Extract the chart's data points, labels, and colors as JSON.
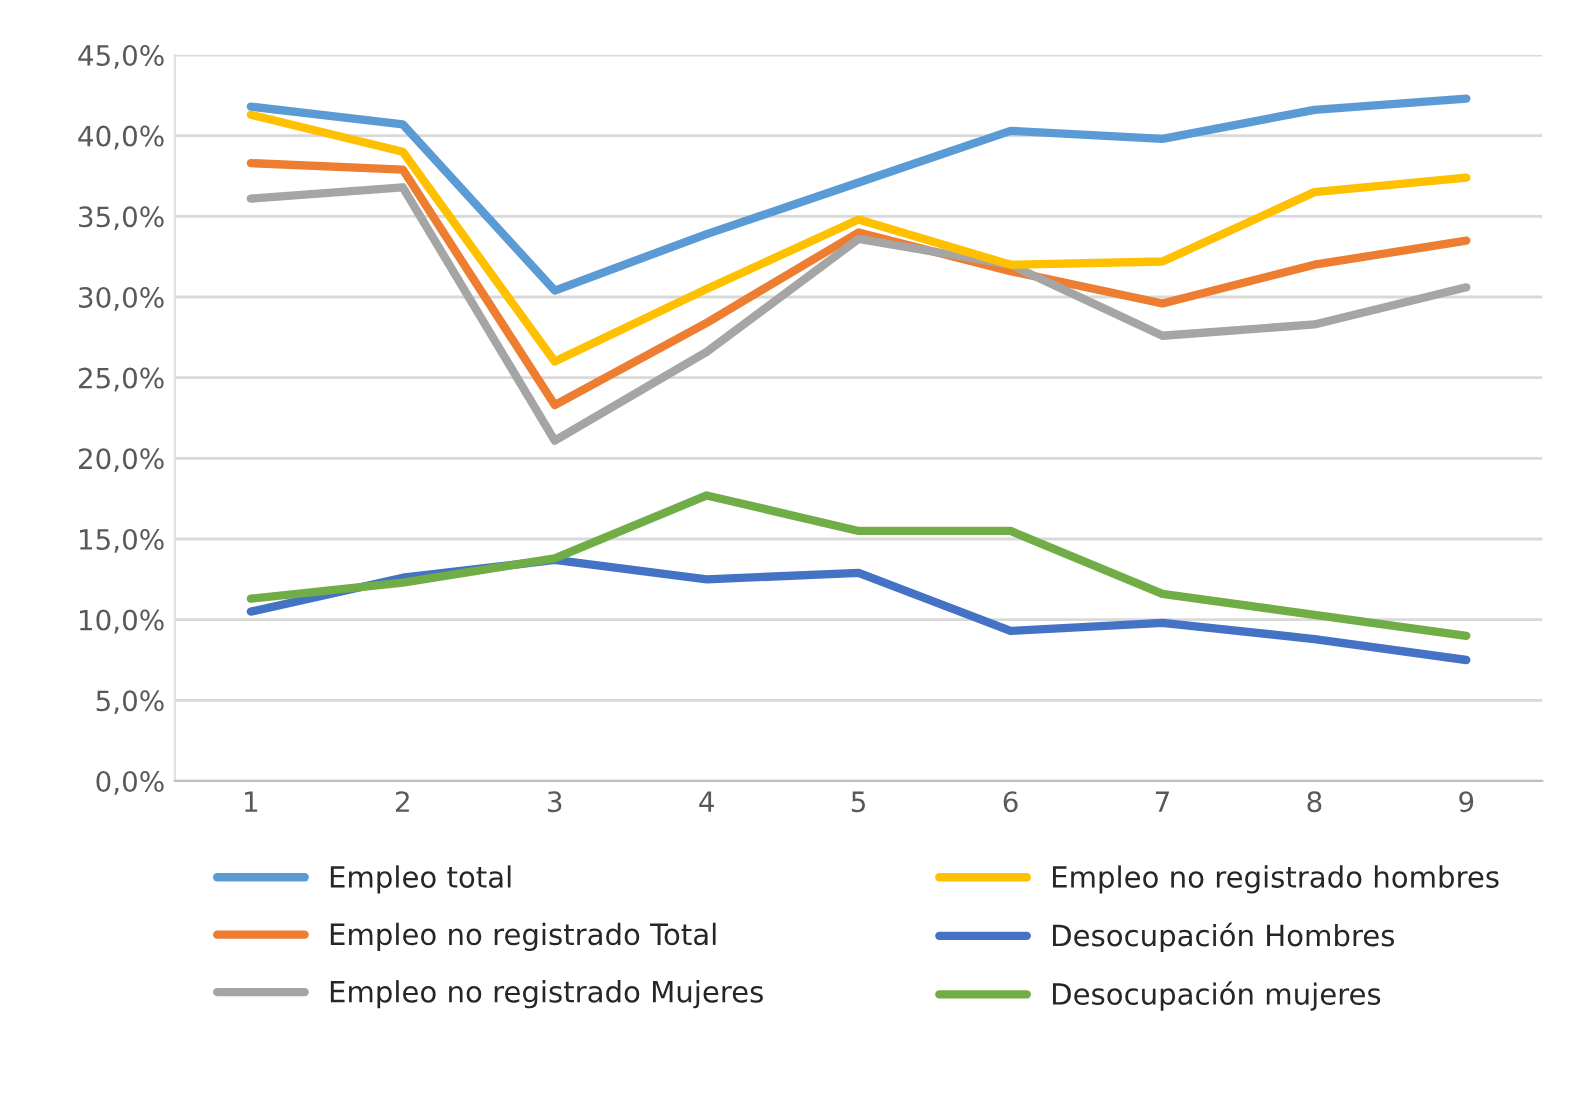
{
  "chart_data": {
    "type": "line",
    "categories": [
      "1",
      "2",
      "3",
      "4",
      "5",
      "6",
      "7",
      "8",
      "9"
    ],
    "series": [
      {
        "name": "Empleo total",
        "color": "#5b9bd5",
        "values": [
          41.8,
          40.7,
          30.4,
          33.9,
          37.1,
          40.3,
          39.8,
          41.6,
          42.3
        ]
      },
      {
        "name": "Empleo no registrado Total",
        "color": "#ed7d31",
        "values": [
          38.3,
          37.9,
          23.3,
          28.4,
          34.0,
          31.6,
          29.6,
          32.0,
          33.5
        ]
      },
      {
        "name": "Empleo no registrado Mujeres",
        "color": "#a5a5a5",
        "values": [
          36.1,
          36.8,
          21.1,
          26.6,
          33.6,
          32.0,
          27.6,
          28.3,
          30.6
        ]
      },
      {
        "name": "Empleo no registrado hombres",
        "color": "#ffc000",
        "values": [
          41.3,
          39.0,
          26.0,
          30.5,
          34.8,
          32.0,
          32.2,
          36.5,
          37.4
        ]
      },
      {
        "name": "Desocupación Hombres",
        "color": "#4472c4",
        "values": [
          10.5,
          12.6,
          13.7,
          12.5,
          12.9,
          9.3,
          9.8,
          8.8,
          7.5
        ]
      },
      {
        "name": "Desocupación mujeres",
        "color": "#70ad47",
        "values": [
          11.3,
          12.3,
          13.8,
          17.7,
          15.5,
          15.5,
          11.6,
          10.3,
          9.0
        ]
      }
    ],
    "ylim": [
      0,
      45
    ],
    "yticks": [
      {
        "value": 0,
        "label": "0,0%"
      },
      {
        "value": 5,
        "label": "5,0%"
      },
      {
        "value": 10,
        "label": "10,0%"
      },
      {
        "value": 15,
        "label": "15,0%"
      },
      {
        "value": 20,
        "label": "20,0%"
      },
      {
        "value": 25,
        "label": "25,0%"
      },
      {
        "value": 30,
        "label": "30,0%"
      },
      {
        "value": 35,
        "label": "35,0%"
      },
      {
        "value": 40,
        "label": "40,0%"
      },
      {
        "value": 45,
        "label": "45,0%"
      }
    ],
    "grid": "y",
    "legend": "bottom",
    "marker": "none",
    "line_style": "solid"
  }
}
